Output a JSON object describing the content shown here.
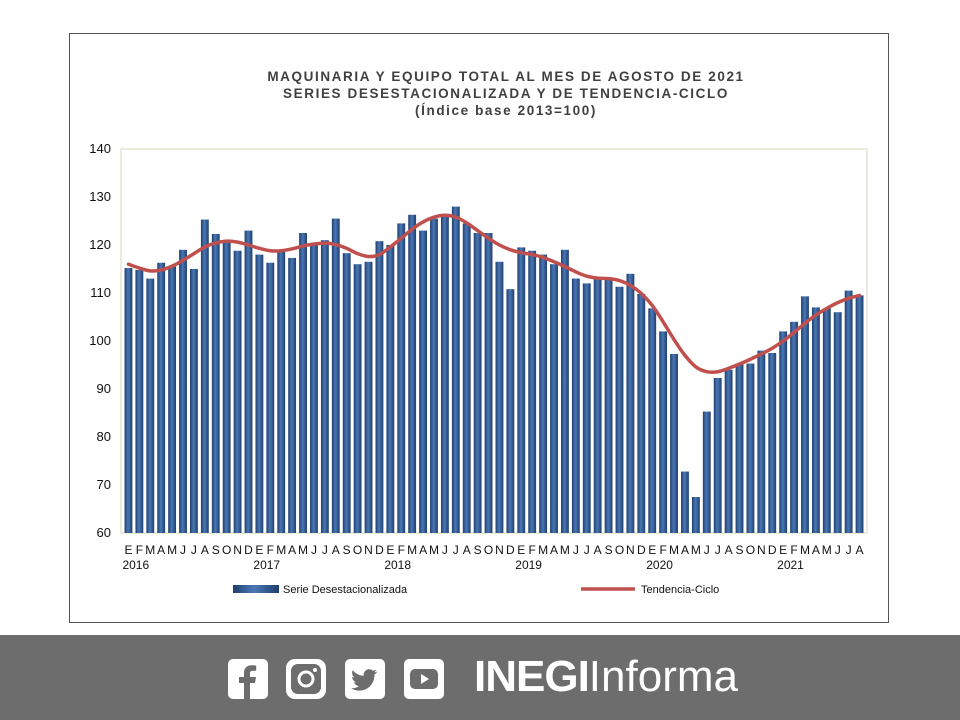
{
  "chart_data": {
    "type": "bar",
    "title_lines": [
      "MAQUINARIA  Y  EQUIPO  TOTAL  AL  MES  DE  AGOSTO  DE  2021",
      "SERIES  DESESTACIONALIZADA  Y  DE  TENDENCIA-CICLO",
      "(Índice  base  2013=100)"
    ],
    "ylim": [
      60,
      140
    ],
    "yticks": [
      60,
      70,
      80,
      90,
      100,
      110,
      120,
      130,
      140
    ],
    "month_labels": [
      "E",
      "F",
      "M",
      "A",
      "M",
      "J",
      "J",
      "A",
      "S",
      "O",
      "N",
      "D"
    ],
    "years": [
      "2016",
      "2017",
      "2018",
      "2019",
      "2020",
      "2021"
    ],
    "series": [
      {
        "name": "Serie Desestacionalizada",
        "kind": "bar",
        "color": "#2e5a93",
        "values": [
          115.2,
          114.8,
          113.0,
          116.3,
          115.5,
          119.0,
          115.0,
          125.3,
          122.3,
          120.8,
          118.8,
          123.0,
          118.0,
          116.3,
          119.0,
          117.3,
          122.5,
          120.3,
          121.0,
          125.5,
          118.3,
          116.0,
          116.5,
          120.8,
          120.0,
          124.5,
          126.3,
          123.0,
          125.5,
          126.0,
          128.0,
          124.5,
          122.5,
          122.5,
          116.5,
          110.8,
          119.5,
          118.8,
          118.0,
          116.0,
          119.0,
          113.0,
          112.0,
          113.0,
          113.0,
          111.3,
          114.0,
          109.8,
          106.8,
          102.0,
          97.3,
          72.8,
          67.5,
          85.3,
          92.3,
          94.0,
          95.3,
          95.3,
          98.0,
          97.5,
          102.0,
          104.0,
          109.3,
          107.0,
          106.8,
          106.0,
          110.5,
          109.5
        ]
      },
      {
        "name": "Tendencia-Ciclo",
        "kind": "line",
        "color": "#c0504d",
        "values": [
          116.0,
          115.2,
          114.6,
          114.8,
          115.6,
          116.8,
          118.2,
          119.6,
          120.4,
          120.8,
          120.6,
          120.0,
          119.3,
          118.8,
          118.8,
          119.2,
          119.8,
          120.2,
          120.4,
          120.1,
          119.3,
          118.2,
          117.6,
          118.0,
          119.6,
          121.4,
          123.3,
          124.8,
          125.8,
          126.2,
          125.8,
          124.6,
          123.0,
          121.4,
          120.0,
          119.0,
          118.4,
          118.0,
          117.4,
          116.5,
          115.5,
          114.4,
          113.5,
          113.1,
          113.0,
          112.6,
          111.6,
          109.9,
          107.4,
          104.0,
          100.3,
          97.0,
          94.6,
          93.6,
          93.6,
          94.3,
          95.2,
          96.2,
          97.3,
          98.5,
          100.0,
          101.8,
          103.7,
          105.4,
          106.8,
          108.0,
          108.9,
          109.5
        ]
      }
    ],
    "legend": [
      "Serie Desestacionalizada",
      "Tendencia-Ciclo"
    ]
  },
  "footer": {
    "brand_bold": "INEGI",
    "brand_light": "Informa",
    "icons": [
      "facebook-icon",
      "instagram-icon",
      "twitter-icon",
      "youtube-icon"
    ]
  }
}
